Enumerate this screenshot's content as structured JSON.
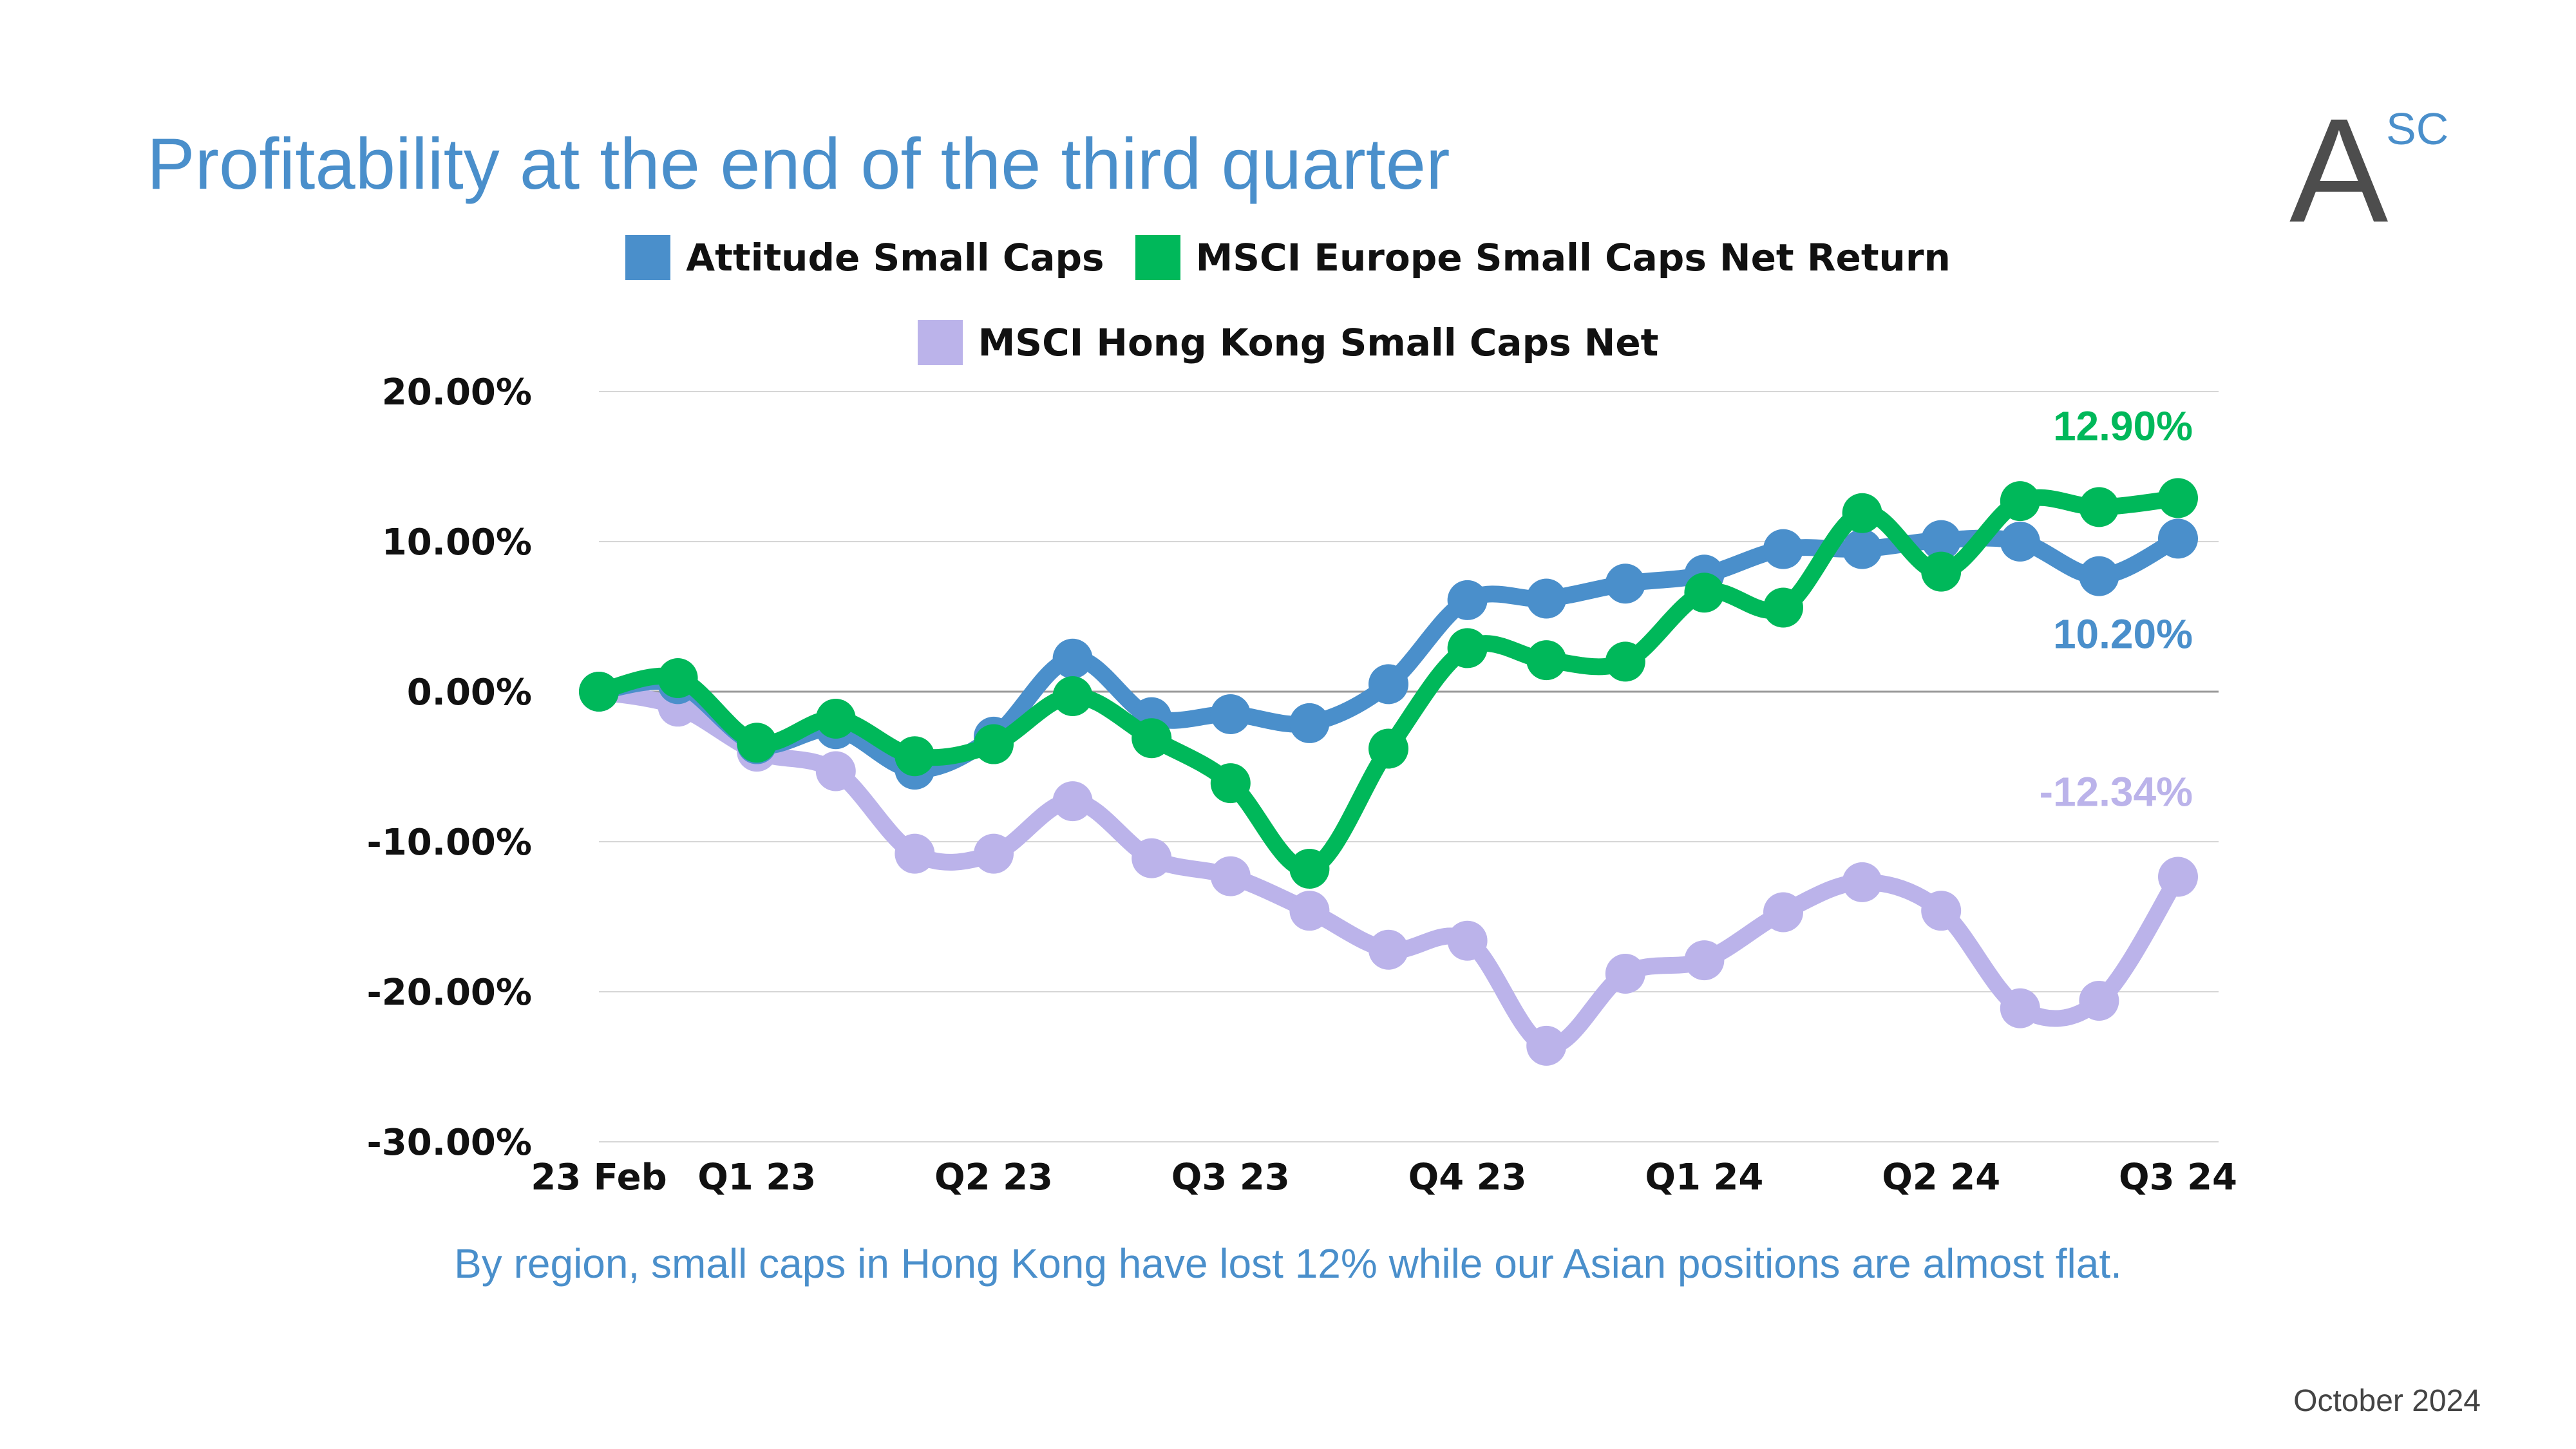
{
  "header": {
    "title": "Profitability at the end of the third quarter"
  },
  "logo": {
    "letter": "A",
    "superscript": "SC"
  },
  "caption": "By region, small caps in Hong Kong have lost 12% while our Asian positions are almost flat.",
  "footer": {
    "date": "October 2024"
  },
  "colors": {
    "attitude": "#4a8fcb",
    "msci_europe": "#00b85a",
    "msci_hk": "#bbb3ea",
    "title": "#4a8fcb"
  },
  "chart_data": {
    "type": "line",
    "title": "",
    "xlabel": "",
    "ylabel": "",
    "ylim": [
      -30,
      20
    ],
    "y_ticks": [
      20,
      10,
      0,
      -10,
      -20,
      -30
    ],
    "y_tick_labels": [
      "20.00%",
      "10.00%",
      "0.00%",
      "-10.00%",
      "-20.00%",
      "-30.00%"
    ],
    "x_count": 21,
    "x_tick_positions": [
      0,
      2,
      5,
      8,
      11,
      14,
      17,
      20
    ],
    "x_tick_labels": [
      "23 Feb",
      "Q1 23",
      "Q2 23",
      "Q3 23",
      "Q4 23",
      "Q1 24",
      "Q2 24",
      "Q3 24"
    ],
    "grid": true,
    "legend_placement": "top",
    "series": [
      {
        "name": "Attitude Small Caps",
        "color": "#4a8fcb",
        "values": [
          0,
          0.5,
          -3.5,
          -2.5,
          -5.2,
          -3.0,
          2.2,
          -1.7,
          -1.5,
          -2.1,
          0.5,
          6.1,
          6.2,
          7.2,
          7.8,
          9.5,
          9.5,
          10.1,
          10.0,
          7.7,
          10.2
        ],
        "end_label": "10.20%"
      },
      {
        "name": "MSCI Europe Small Caps Net Return",
        "color": "#00b85a",
        "values": [
          0,
          0.9,
          -3.4,
          -1.8,
          -4.3,
          -3.5,
          -0.3,
          -3.1,
          -6.1,
          -11.8,
          -3.8,
          2.9,
          2.1,
          2.0,
          6.6,
          5.6,
          11.9,
          8.0,
          12.7,
          12.3,
          12.9
        ],
        "end_label": "12.90%"
      },
      {
        "name": "MSCI Hong Kong Small Caps Net",
        "color": "#bbb3ea",
        "values": [
          0,
          -1.0,
          -4.0,
          -5.3,
          -10.8,
          -10.8,
          -7.3,
          -11.1,
          -12.3,
          -14.6,
          -17.2,
          -16.6,
          -23.6,
          -18.8,
          -17.9,
          -14.7,
          -12.7,
          -14.6,
          -21.1,
          -20.6,
          -12.34
        ],
        "end_label": "-12.34%"
      }
    ]
  }
}
